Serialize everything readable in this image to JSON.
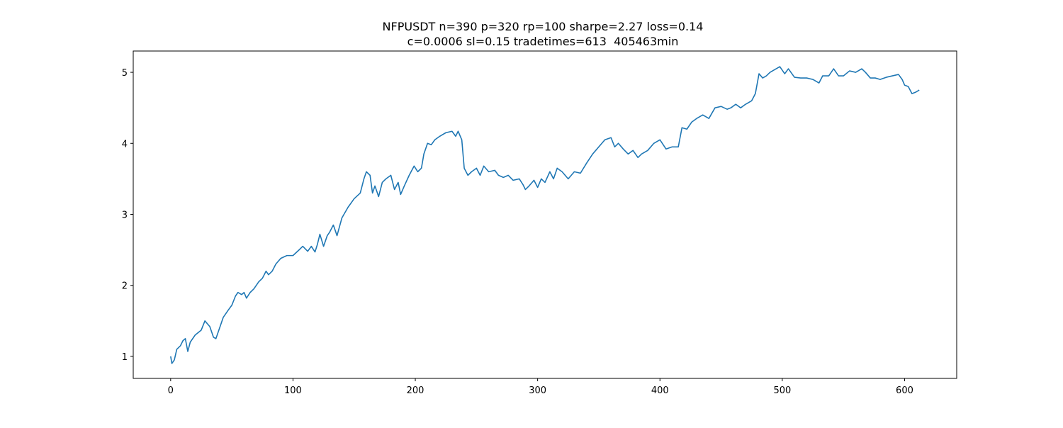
{
  "chart_data": {
    "type": "line",
    "title": [
      "NFPUSDT n=390 p=320 rp=100 sharpe=2.27 loss=0.14",
      "c=0.0006 sl=0.15 tradetimes=613  405463min"
    ],
    "x": [
      0,
      1,
      3,
      5,
      8,
      10,
      12,
      14,
      16,
      20,
      25,
      28,
      32,
      35,
      37,
      40,
      43,
      47,
      50,
      53,
      55,
      58,
      60,
      62,
      65,
      68,
      72,
      75,
      78,
      80,
      83,
      86,
      90,
      95,
      100,
      105,
      108,
      112,
      115,
      118,
      120,
      122,
      125,
      128,
      130,
      133,
      136,
      140,
      145,
      150,
      155,
      158,
      160,
      163,
      165,
      167,
      170,
      173,
      176,
      180,
      183,
      186,
      188,
      191,
      195,
      199,
      202,
      205,
      207,
      210,
      213,
      216,
      220,
      225,
      230,
      233,
      235,
      238,
      240,
      243,
      246,
      250,
      253,
      256,
      260,
      265,
      268,
      272,
      276,
      280,
      285,
      288,
      290,
      293,
      297,
      300,
      303,
      306,
      310,
      313,
      316,
      320,
      325,
      330,
      335,
      340,
      345,
      350,
      355,
      360,
      363,
      366,
      370,
      374,
      378,
      382,
      385,
      390,
      395,
      400,
      405,
      410,
      415,
      418,
      422,
      426,
      430,
      435,
      440,
      445,
      450,
      455,
      458,
      462,
      466,
      470,
      475,
      478,
      481,
      484,
      487,
      490,
      495,
      498,
      502,
      505,
      510,
      515,
      520,
      525,
      530,
      533,
      538,
      542,
      546,
      550,
      555,
      560,
      565,
      568,
      572,
      576,
      580,
      585,
      590,
      595,
      598,
      600,
      603,
      606,
      609,
      612
    ],
    "series": [
      {
        "color": "#1f77b4",
        "values": [
          1.0,
          0.9,
          0.95,
          1.1,
          1.15,
          1.22,
          1.25,
          1.07,
          1.2,
          1.3,
          1.37,
          1.5,
          1.42,
          1.27,
          1.25,
          1.4,
          1.55,
          1.65,
          1.72,
          1.85,
          1.9,
          1.87,
          1.9,
          1.82,
          1.9,
          1.95,
          2.05,
          2.1,
          2.2,
          2.15,
          2.2,
          2.3,
          2.38,
          2.42,
          2.42,
          2.5,
          2.55,
          2.48,
          2.55,
          2.47,
          2.58,
          2.72,
          2.55,
          2.7,
          2.75,
          2.85,
          2.7,
          2.95,
          3.1,
          3.22,
          3.3,
          3.5,
          3.6,
          3.55,
          3.3,
          3.4,
          3.25,
          3.45,
          3.5,
          3.55,
          3.35,
          3.45,
          3.28,
          3.4,
          3.55,
          3.68,
          3.6,
          3.65,
          3.85,
          4.0,
          3.98,
          4.05,
          4.1,
          4.15,
          4.17,
          4.1,
          4.17,
          4.05,
          3.65,
          3.55,
          3.6,
          3.65,
          3.55,
          3.68,
          3.6,
          3.62,
          3.55,
          3.52,
          3.55,
          3.48,
          3.5,
          3.42,
          3.35,
          3.4,
          3.48,
          3.38,
          3.5,
          3.45,
          3.6,
          3.5,
          3.65,
          3.6,
          3.5,
          3.6,
          3.58,
          3.72,
          3.85,
          3.95,
          4.05,
          4.08,
          3.95,
          4.0,
          3.92,
          3.85,
          3.9,
          3.8,
          3.85,
          3.9,
          4.0,
          4.05,
          3.92,
          3.95,
          3.95,
          4.22,
          4.2,
          4.3,
          4.35,
          4.4,
          4.35,
          4.5,
          4.52,
          4.48,
          4.5,
          4.55,
          4.5,
          4.55,
          4.6,
          4.7,
          4.98,
          4.92,
          4.95,
          5.0,
          5.05,
          5.08,
          4.98,
          5.05,
          4.93,
          4.92,
          4.92,
          4.9,
          4.85,
          4.95,
          4.95,
          5.05,
          4.95,
          4.95,
          5.02,
          5.0,
          5.05,
          5.0,
          4.92,
          4.92,
          4.9,
          4.93,
          4.95,
          4.97,
          4.9,
          4.82,
          4.8,
          4.7,
          4.72,
          4.75
        ]
      }
    ],
    "xlim": [
      -30.6,
      642.6
    ],
    "ylim": [
      0.69,
      5.3
    ],
    "xticks": [
      0,
      100,
      200,
      300,
      400,
      500,
      600
    ],
    "yticks": [
      1,
      2,
      3,
      4,
      5
    ]
  }
}
